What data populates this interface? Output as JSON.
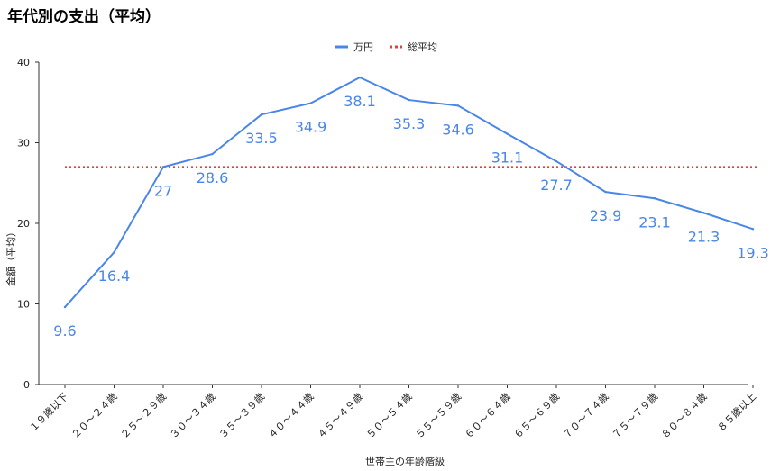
{
  "chart_data": {
    "type": "line",
    "title": "年代別の支出（平均）",
    "xlabel": "世帯主の年齢階級",
    "ylabel": "金額（平均）",
    "ylim": [
      0,
      40
    ],
    "yticks": [
      0,
      10,
      20,
      30,
      40
    ],
    "grid": false,
    "legend_position": "top-center",
    "categories": [
      "１９歳以下",
      "２０～２４歳",
      "２５～２９歳",
      "３０～３４歳",
      "３５～３９歳",
      "４０～４４歳",
      "４５～４９歳",
      "５０～５４歳",
      "５５～５９歳",
      "６０～６４歳",
      "６５～６９歳",
      "７０～７４歳",
      "７５～７９歳",
      "８０～８４歳",
      "８５歳以上"
    ],
    "series": [
      {
        "name": "万円",
        "color": "#4a86e8",
        "values": [
          9.6,
          16.4,
          27,
          28.6,
          33.5,
          34.9,
          38.1,
          35.3,
          34.6,
          31.1,
          27.7,
          23.9,
          23.1,
          21.3,
          19.3
        ],
        "labels": [
          "9.6",
          "16.4",
          "27",
          "28.6",
          "33.5",
          "34.9",
          "38.1",
          "35.3",
          "34.6",
          "31.1",
          "27.7",
          "23.9",
          "23.1",
          "21.3",
          "19.3"
        ]
      },
      {
        "name": "総平均",
        "color": "#db4437",
        "style": "dotted",
        "value": 27
      }
    ]
  }
}
